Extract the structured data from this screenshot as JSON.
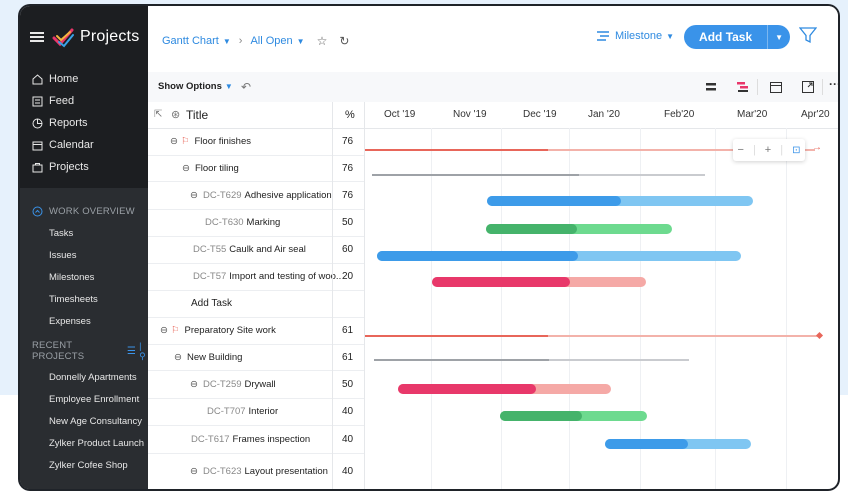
{
  "app": {
    "title": "Projects"
  },
  "sidebar": {
    "nav": [
      {
        "label": "Home",
        "icon": "home-icon"
      },
      {
        "label": "Feed",
        "icon": "feed-icon"
      },
      {
        "label": "Reports",
        "icon": "reports-icon"
      },
      {
        "label": "Calendar",
        "icon": "calendar-icon"
      },
      {
        "label": "Projects",
        "icon": "projects-icon"
      }
    ],
    "work_overview_heading": "WORK OVERVIEW",
    "work_overview": [
      "Tasks",
      "Issues",
      "Milestones",
      "Timesheets",
      "Expenses"
    ],
    "recent_heading": "RECENT PROJECTS",
    "recent": [
      "Donnelly Apartments",
      "Employee Enrollment",
      "New Age Consultancy",
      "Zylker Product Launch",
      "Zylker Cofee Shop"
    ]
  },
  "header": {
    "view": "Gantt Chart",
    "filter": "All Open",
    "milestone": "Milestone",
    "add_task": "Add Task"
  },
  "toolbar": {
    "show_options": "Show Options"
  },
  "table": {
    "title_header": "Title",
    "percent_header": "%",
    "months": [
      "Oct '19",
      "Nov '19",
      "Dec '19",
      "Jan '20",
      "Feb'20",
      "Mar'20",
      "Apr'20"
    ],
    "rows": [
      {
        "code": "",
        "name": "Floor finishes",
        "percent": "76"
      },
      {
        "code": "",
        "name": "Floor tiling",
        "percent": "76"
      },
      {
        "code": "DC-T629",
        "name": "Adhesive application",
        "percent": "76"
      },
      {
        "code": "DC-T630",
        "name": "Marking",
        "percent": "50"
      },
      {
        "code": "DC-T55",
        "name": "Caulk and Air seal",
        "percent": "60"
      },
      {
        "code": "DC-T57",
        "name": "Import and testing of woo..",
        "percent": "20"
      },
      {
        "code": "",
        "name": "Add Task",
        "percent": ""
      },
      {
        "code": "",
        "name": "Preparatory Site work",
        "percent": "61"
      },
      {
        "code": "",
        "name": "New Building",
        "percent": "61"
      },
      {
        "code": "DC-T259",
        "name": "Drywall",
        "percent": "50"
      },
      {
        "code": "DC-T707",
        "name": "Interior",
        "percent": "40"
      },
      {
        "code": "DC-T617",
        "name": "Frames inspection",
        "percent": "40"
      },
      {
        "code": "DC-T623",
        "name": "Layout presentation",
        "percent": "40"
      }
    ]
  },
  "colors": {
    "blue": "#3d9be9",
    "blue_light": "#7fc6f2",
    "green": "#45b36b",
    "green_light": "#6dda8f",
    "pink": "#e8386a",
    "pink_light": "#f5a9a6",
    "milestone_red": "#e8665a",
    "gray": "#b0b3b8"
  }
}
